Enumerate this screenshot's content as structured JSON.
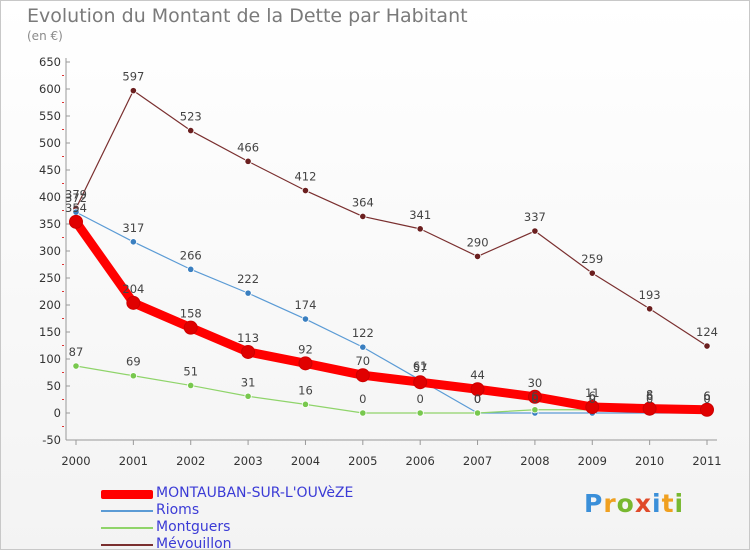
{
  "header": {
    "title": "Evolution du Montant de la Dette par Habitant",
    "subtitle": "(en €)"
  },
  "legend": {
    "items": [
      {
        "label": "MONTAUBAN-SUR-L'OUVèZE",
        "color": "#ff0000",
        "width": "thick"
      },
      {
        "label": "Rioms",
        "color": "#5b9bd5"
      },
      {
        "label": "Montguers",
        "color": "#8fd46a"
      },
      {
        "label": "Mévouillon",
        "color": "#7a2f2f"
      }
    ]
  },
  "brand": {
    "text": "Proxiti",
    "colors": [
      "#3a8fd9",
      "#f0a020",
      "#78b830",
      "#e04a2a",
      "#3a8fd9",
      "#f0a020",
      "#78b830"
    ]
  },
  "chart_data": {
    "type": "line",
    "x": [
      "2000",
      "2001",
      "2002",
      "2003",
      "2004",
      "2005",
      "2006",
      "2007",
      "2008",
      "2009",
      "2010",
      "2011"
    ],
    "ylim": [
      -50,
      650
    ],
    "yticks": [
      "-50",
      "0",
      "50",
      "100",
      "150",
      "200",
      "250",
      "300",
      "350",
      "400",
      "450",
      "500",
      "550",
      "600",
      "650"
    ],
    "grid": false,
    "legend_position": "bottom-left",
    "series": [
      {
        "name": "Mévouillon",
        "color": "#7a2f2f",
        "point_color": "#6b1f1f",
        "values": [
          379,
          597,
          523,
          466,
          412,
          364,
          341,
          290,
          337,
          259,
          193,
          124
        ],
        "labels": [
          "379",
          "597",
          "523",
          "466",
          "412",
          "364",
          "341",
          "290",
          "337",
          "259",
          "193",
          "124"
        ]
      },
      {
        "name": "Rioms",
        "color": "#5b9bd5",
        "point_color": "#3a7fc0",
        "values": [
          372,
          317,
          266,
          222,
          174,
          122,
          61,
          0,
          0,
          0,
          0,
          0
        ],
        "labels": [
          "372",
          "317",
          "266",
          "222",
          "174",
          "122",
          "61",
          "0",
          "0",
          "0",
          "0",
          "0"
        ]
      },
      {
        "name": "Montguers",
        "color": "#8fd46a",
        "point_color": "#78c84e",
        "values": [
          87,
          69,
          51,
          31,
          16,
          0,
          0,
          0,
          6,
          6,
          6,
          6
        ],
        "labels": [
          "87",
          "69",
          "51",
          "31",
          "16",
          "0",
          "0",
          "0",
          "6",
          "6",
          "6",
          "6"
        ]
      },
      {
        "name": "MONTAUBAN-SUR-L'OUVèZE",
        "color": "#ff0000",
        "point_color": "#e00000",
        "thick": true,
        "values": [
          354,
          204,
          158,
          113,
          92,
          70,
          57,
          44,
          30,
          11,
          8,
          6
        ],
        "labels": [
          "354",
          "204",
          "158",
          "113",
          "92",
          "70",
          "57",
          "44",
          "30",
          "11",
          "8",
          "6"
        ]
      }
    ]
  }
}
